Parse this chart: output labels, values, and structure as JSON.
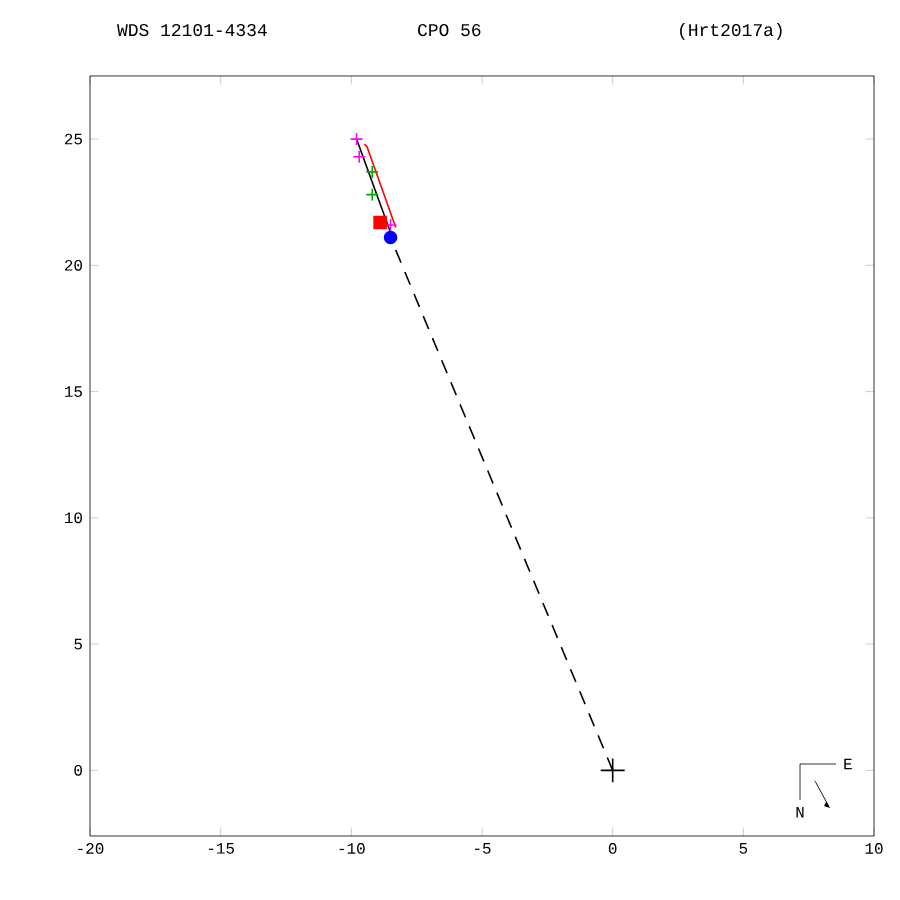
{
  "chart_data": {
    "type": "scatter",
    "title": "WDS 12101-4334",
    "annotations": [
      "CPO  56",
      "(Hrt2017a)",
      "N",
      "E"
    ],
    "xlim": [
      -20,
      10
    ],
    "ylim": [
      -2.6,
      27.5
    ],
    "xticks": [
      -20,
      -15,
      -10,
      -5,
      0,
      5,
      10
    ],
    "yticks": [
      0,
      5,
      10,
      15,
      20,
      25
    ],
    "grid": false,
    "series": [
      {
        "type": "line",
        "color": "#000000",
        "line_style": "dashed",
        "marker": "none",
        "x": [
          0,
          -8.5
        ],
        "values": [
          0,
          21.1
        ]
      },
      {
        "type": "line",
        "color": "#000000",
        "line_style": "solid",
        "marker": "none",
        "x": [
          -9.8,
          -8.5
        ],
        "values": [
          25.0,
          21.3
        ]
      },
      {
        "type": "line",
        "color": "#ff0000",
        "line_style": "solid",
        "marker": "none",
        "x": [
          -9.5,
          -9.4,
          -8.3
        ],
        "values": [
          24.8,
          24.7,
          21.5
        ]
      },
      {
        "color": "#00aa00",
        "marker": "cross",
        "x": [
          -9.2,
          -9.2
        ],
        "values": [
          23.7,
          22.8
        ]
      },
      {
        "color": "#ff00ff",
        "marker": "cross",
        "x": [
          -9.8,
          -9.7,
          -8.5
        ],
        "values": [
          25.0,
          24.3,
          21.6
        ]
      },
      {
        "color": "#ff0000",
        "marker": "square",
        "x": [
          -8.9
        ],
        "values": [
          21.7
        ]
      },
      {
        "color": "#0000ff",
        "marker": "circle",
        "x": [
          -8.5
        ],
        "values": [
          21.1
        ]
      },
      {
        "color": "#000000",
        "marker": "cross",
        "x": [
          0
        ],
        "values": [
          0
        ]
      }
    ]
  }
}
